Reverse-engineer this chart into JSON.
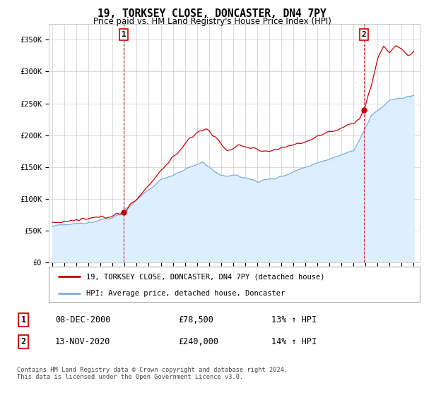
{
  "title": "19, TORKSEY CLOSE, DONCASTER, DN4 7PY",
  "subtitle": "Price paid vs. HM Land Registry's House Price Index (HPI)",
  "ylabel_ticks": [
    "£0",
    "£50K",
    "£100K",
    "£150K",
    "£200K",
    "£250K",
    "£300K",
    "£350K"
  ],
  "ytick_values": [
    0,
    50000,
    100000,
    150000,
    200000,
    250000,
    300000,
    350000
  ],
  "ylim": [
    0,
    375000
  ],
  "xlim_left": 1994.7,
  "xlim_right": 2025.5,
  "sale1_date_num": 2000.93,
  "sale1_price": 78500,
  "sale1_label": "1",
  "sale2_date_num": 2020.87,
  "sale2_price": 240000,
  "sale2_label": "2",
  "legend_entry1": "19, TORKSEY CLOSE, DONCASTER, DN4 7PY (detached house)",
  "legend_entry2": "HPI: Average price, detached house, Doncaster",
  "table_row1": [
    "1",
    "08-DEC-2000",
    "£78,500",
    "13% ↑ HPI"
  ],
  "table_row2": [
    "2",
    "13-NOV-2020",
    "£240,000",
    "14% ↑ HPI"
  ],
  "footnote": "Contains HM Land Registry data © Crown copyright and database right 2024.\nThis data is licensed under the Open Government Licence v3.0.",
  "line_color_red": "#cc0000",
  "line_color_blue": "#7aaddb",
  "fill_color_blue": "#ddeeff",
  "sale_marker_color": "#cc0000",
  "vline_color": "#cc0000",
  "grid_color": "#cccccc",
  "bg_color": "#ffffff"
}
